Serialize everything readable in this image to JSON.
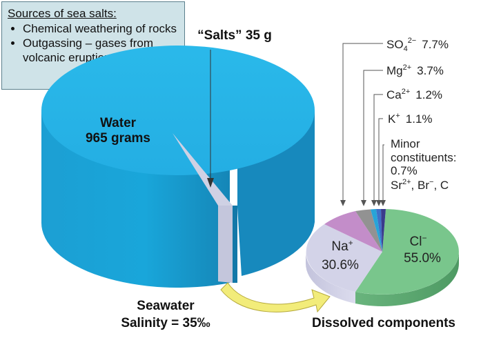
{
  "info_box": {
    "title": "Sources of sea salts:",
    "items": [
      "Chemical weathering of rocks",
      "Outgassing – gases from volcanic eruptions"
    ]
  },
  "seawater": {
    "water_label_1": "Water",
    "water_label_2": "965 grams",
    "salts_label": "“Salts” 35 g",
    "caption_1": "Seawater",
    "caption_2": "Salinity = 35‰"
  },
  "dissolved": {
    "caption": "Dissolved components",
    "cl_ion": "Cl",
    "cl_charge": "−",
    "cl_percent": "55.0%",
    "na_ion": "Na",
    "na_charge": "+",
    "na_percent": "30.6%",
    "so4_ion": "SO",
    "so4_sub": "4",
    "so4_charge": "2−",
    "so4_percent": "7.7%",
    "mg_ion": "Mg",
    "mg_charge": "2+",
    "mg_percent": "3.7%",
    "ca_ion": "Ca",
    "ca_charge": "2+",
    "ca_percent": "1.2%",
    "k_ion": "K",
    "k_charge": "+",
    "k_percent": "1.1%",
    "minor_1": "Minor",
    "minor_2": "constituents:",
    "minor_3": "0.7%",
    "minor_4_sr": "Sr",
    "minor_4_sr_charge": "2+",
    "minor_4_rest": ", Br",
    "minor_4_br_charge": "−",
    "minor_4_end": ", C"
  },
  "colors": {
    "water_top": "#22b5e8",
    "water_side": "#1a9bd0",
    "salts_sliver": "#cccfe2",
    "cl": "#77c48a",
    "na": "#d0d0e6",
    "so4": "#c08ac6",
    "mg": "#909090",
    "ca": "#27a3d6",
    "k": "#3f6fc4",
    "minor": "#3a3a8a",
    "arrow": "#f2ec7a",
    "box_bg": "#cfe3e8"
  }
}
